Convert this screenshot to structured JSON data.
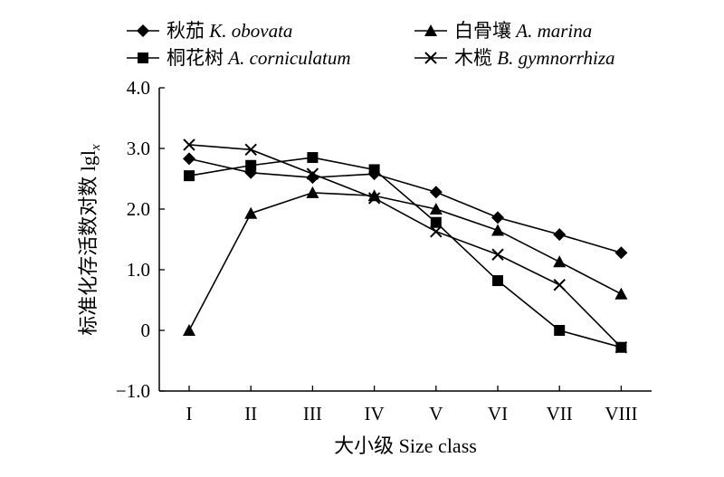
{
  "chart_data": {
    "type": "line",
    "xlabel": "大小级 Size class",
    "ylabel": "标准化存活数对数 lgl",
    "ylabel_subscript": "x",
    "categories": [
      "I",
      "II",
      "III",
      "IV",
      "V",
      "VI",
      "VII",
      "VIII"
    ],
    "ylim": [
      -1.0,
      4.0
    ],
    "yticks": [
      "4.0",
      "3.0",
      "2.0",
      "1.0",
      "0",
      "−1.0"
    ],
    "grid": false,
    "legend_position": "top",
    "series": [
      {
        "name": "秋茄",
        "latin": "K. obovata",
        "marker": "diamond",
        "values": [
          2.83,
          2.6,
          2.52,
          2.58,
          2.28,
          1.86,
          1.58,
          1.28
        ]
      },
      {
        "name": "桐花树",
        "latin": "A. corniculatum",
        "marker": "square",
        "values": [
          2.55,
          2.72,
          2.85,
          2.65,
          1.78,
          0.82,
          0.0,
          -0.28
        ]
      },
      {
        "name": "白骨壤",
        "latin": "A. marina",
        "marker": "triangle",
        "values": [
          0.0,
          1.93,
          2.27,
          2.22,
          2.0,
          1.65,
          1.13,
          0.6
        ]
      },
      {
        "name": "木榄",
        "latin": "B. gymnorrhiza",
        "marker": "cross",
        "values": [
          3.06,
          2.98,
          2.58,
          2.18,
          1.63,
          1.25,
          0.75,
          -0.28
        ]
      }
    ]
  }
}
